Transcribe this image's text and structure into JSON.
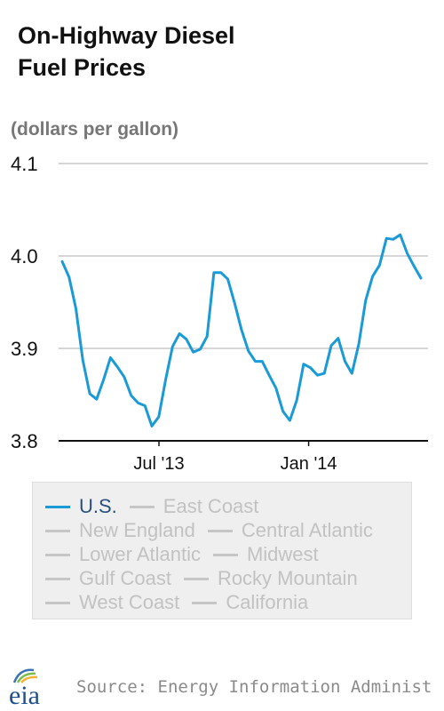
{
  "title_line1": "On-Highway Diesel",
  "title_line2": "Fuel Prices",
  "units": "(dollars per gallon)",
  "legend": {
    "items": [
      {
        "label": "U.S.",
        "active": true
      },
      {
        "label": "East Coast",
        "active": false
      },
      {
        "label": "New England",
        "active": false
      },
      {
        "label": "Central Atlantic",
        "active": false
      },
      {
        "label": "Lower Atlantic",
        "active": false
      },
      {
        "label": "Midwest",
        "active": false
      },
      {
        "label": "Gulf Coast",
        "active": false
      },
      {
        "label": "Rocky Mountain",
        "active": false
      },
      {
        "label": "West Coast",
        "active": false
      },
      {
        "label": "California",
        "active": false
      }
    ]
  },
  "source": "Source: Energy Information Administ",
  "logo_text": "eia",
  "colors": {
    "series": "#1a9ad6",
    "grid": "#c8c8c8",
    "inactive": "#c6c6c6",
    "legend_active_text": "#2a4f7f",
    "units_text": "#777777"
  },
  "chart_data": {
    "type": "line",
    "title": "On-Highway Diesel Fuel Prices",
    "ylabel": "(dollars per gallon)",
    "ylim": [
      3.8,
      4.1
    ],
    "y_ticks": [
      3.8,
      3.9,
      4.0,
      4.1
    ],
    "y_tick_labels": [
      "3.8",
      "3.9",
      "4.0",
      "4.1"
    ],
    "grid": true,
    "x_start_date": "2013-03-04",
    "x_end_date": "2014-05-19",
    "x_ticks": [
      {
        "label": "Jul '13",
        "date": "2013-07-01"
      },
      {
        "label": "Jan '14",
        "date": "2014-01-01"
      }
    ],
    "series": [
      {
        "name": "U.S.",
        "values": [
          3.994,
          3.977,
          3.943,
          3.887,
          3.851,
          3.845,
          3.866,
          3.89,
          3.88,
          3.869,
          3.849,
          3.841,
          3.838,
          3.816,
          3.826,
          3.866,
          3.902,
          3.916,
          3.91,
          3.896,
          3.899,
          3.913,
          3.982,
          3.982,
          3.975,
          3.949,
          3.92,
          3.897,
          3.886,
          3.886,
          3.871,
          3.857,
          3.832,
          3.822,
          3.844,
          3.883,
          3.879,
          3.871,
          3.873,
          3.903,
          3.911,
          3.886,
          3.873,
          3.905,
          3.952,
          3.978,
          3.99,
          4.019,
          4.018,
          4.023,
          4.003,
          3.989,
          3.976
        ]
      }
    ]
  }
}
